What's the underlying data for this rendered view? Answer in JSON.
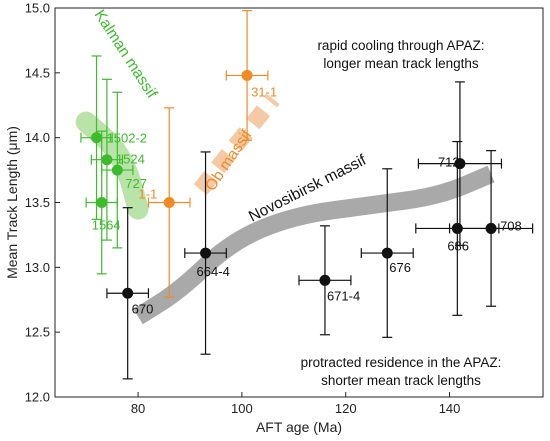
{
  "chart_data": {
    "type": "scatter",
    "xlabel": "AFT age (Ma)",
    "ylabel": "Mean Track Length (μm)",
    "xlim": [
      64,
      158
    ],
    "ylim": [
      12.0,
      15.0
    ],
    "x_ticks": [
      80,
      100,
      120,
      140
    ],
    "y_ticks": [
      12.0,
      12.5,
      13.0,
      13.5,
      14.0,
      14.5,
      15.0
    ],
    "x_tick_labels": [
      "80",
      "100",
      "120",
      "140"
    ],
    "y_tick_labels": [
      "12.0",
      "12.5",
      "13.0",
      "13.5",
      "14.0",
      "14.5",
      "15.0"
    ],
    "grid": false,
    "series": [
      {
        "name": "Kalman massif",
        "color": "#3dbb2c",
        "points": [
          {
            "label": "1502-2",
            "x": 72,
            "y": 14.0,
            "xerr": 3,
            "yerr": 0.63
          },
          {
            "label": "1524",
            "x": 74,
            "y": 13.83,
            "xerr": 3,
            "yerr": 0.62
          },
          {
            "label": "727",
            "x": 76,
            "y": 13.75,
            "xerr": 3,
            "yerr": 0.6
          },
          {
            "label": "1564",
            "x": 73,
            "y": 13.5,
            "xerr": 3,
            "yerr": 0.55
          }
        ]
      },
      {
        "name": "Ob massif",
        "color": "#f08a24",
        "points": [
          {
            "label": "1-1",
            "x": 86,
            "y": 13.5,
            "xerr": 4,
            "yerr": 0.73
          },
          {
            "label": "31-1",
            "x": 101,
            "y": 14.48,
            "xerr": 4,
            "yerr": 0.5
          }
        ]
      },
      {
        "name": "Novosibirsk massif",
        "color": "#111111",
        "points": [
          {
            "label": "670",
            "x": 78,
            "y": 12.8,
            "xerr": 4,
            "yerr": 0.66
          },
          {
            "label": "664-4",
            "x": 93,
            "y": 13.11,
            "xerr": 4,
            "yerr": 0.78
          },
          {
            "label": "671-4",
            "x": 116,
            "y": 12.9,
            "xerr": 5,
            "yerr": 0.42
          },
          {
            "label": "676",
            "x": 128,
            "y": 13.11,
            "xerr": 5,
            "yerr": 0.65
          },
          {
            "label": "712",
            "x": 142,
            "y": 13.8,
            "xerr": 8,
            "yerr": 0.63
          },
          {
            "label": "686",
            "x": 141.5,
            "y": 13.3,
            "xerr": 8,
            "yerr": 0.67
          },
          {
            "label": "708",
            "x": 148,
            "y": 13.3,
            "xerr": 8,
            "yerr": 0.6
          }
        ]
      }
    ],
    "trend_bands": [
      {
        "massif": "Kalman massif",
        "color": "#b9e3a8",
        "path": [
          [
            70,
            14.12
          ],
          [
            75,
            13.95
          ],
          [
            78,
            13.75
          ],
          [
            80,
            13.45
          ]
        ],
        "style": "solid"
      },
      {
        "massif": "Ob massif",
        "color": "#f5c9a3",
        "path": [
          [
            92,
            13.6
          ],
          [
            106,
            14.3
          ]
        ],
        "style": "dashed"
      },
      {
        "massif": "Novosibirsk massif",
        "color": "#a9a9a9",
        "path": [
          [
            80,
            12.62
          ],
          [
            88,
            12.82
          ],
          [
            98,
            13.2
          ],
          [
            110,
            13.4
          ],
          [
            125,
            13.48
          ],
          [
            138,
            13.55
          ],
          [
            148,
            13.72
          ]
        ],
        "style": "solid"
      }
    ],
    "annotations": [
      {
        "id": "top",
        "lines": [
          "rapid cooling through APAZ:",
          "longer mean track lengths"
        ]
      },
      {
        "id": "bottom",
        "lines": [
          "protracted residence in the APAZ:",
          "shorter mean track lengths"
        ]
      }
    ]
  }
}
